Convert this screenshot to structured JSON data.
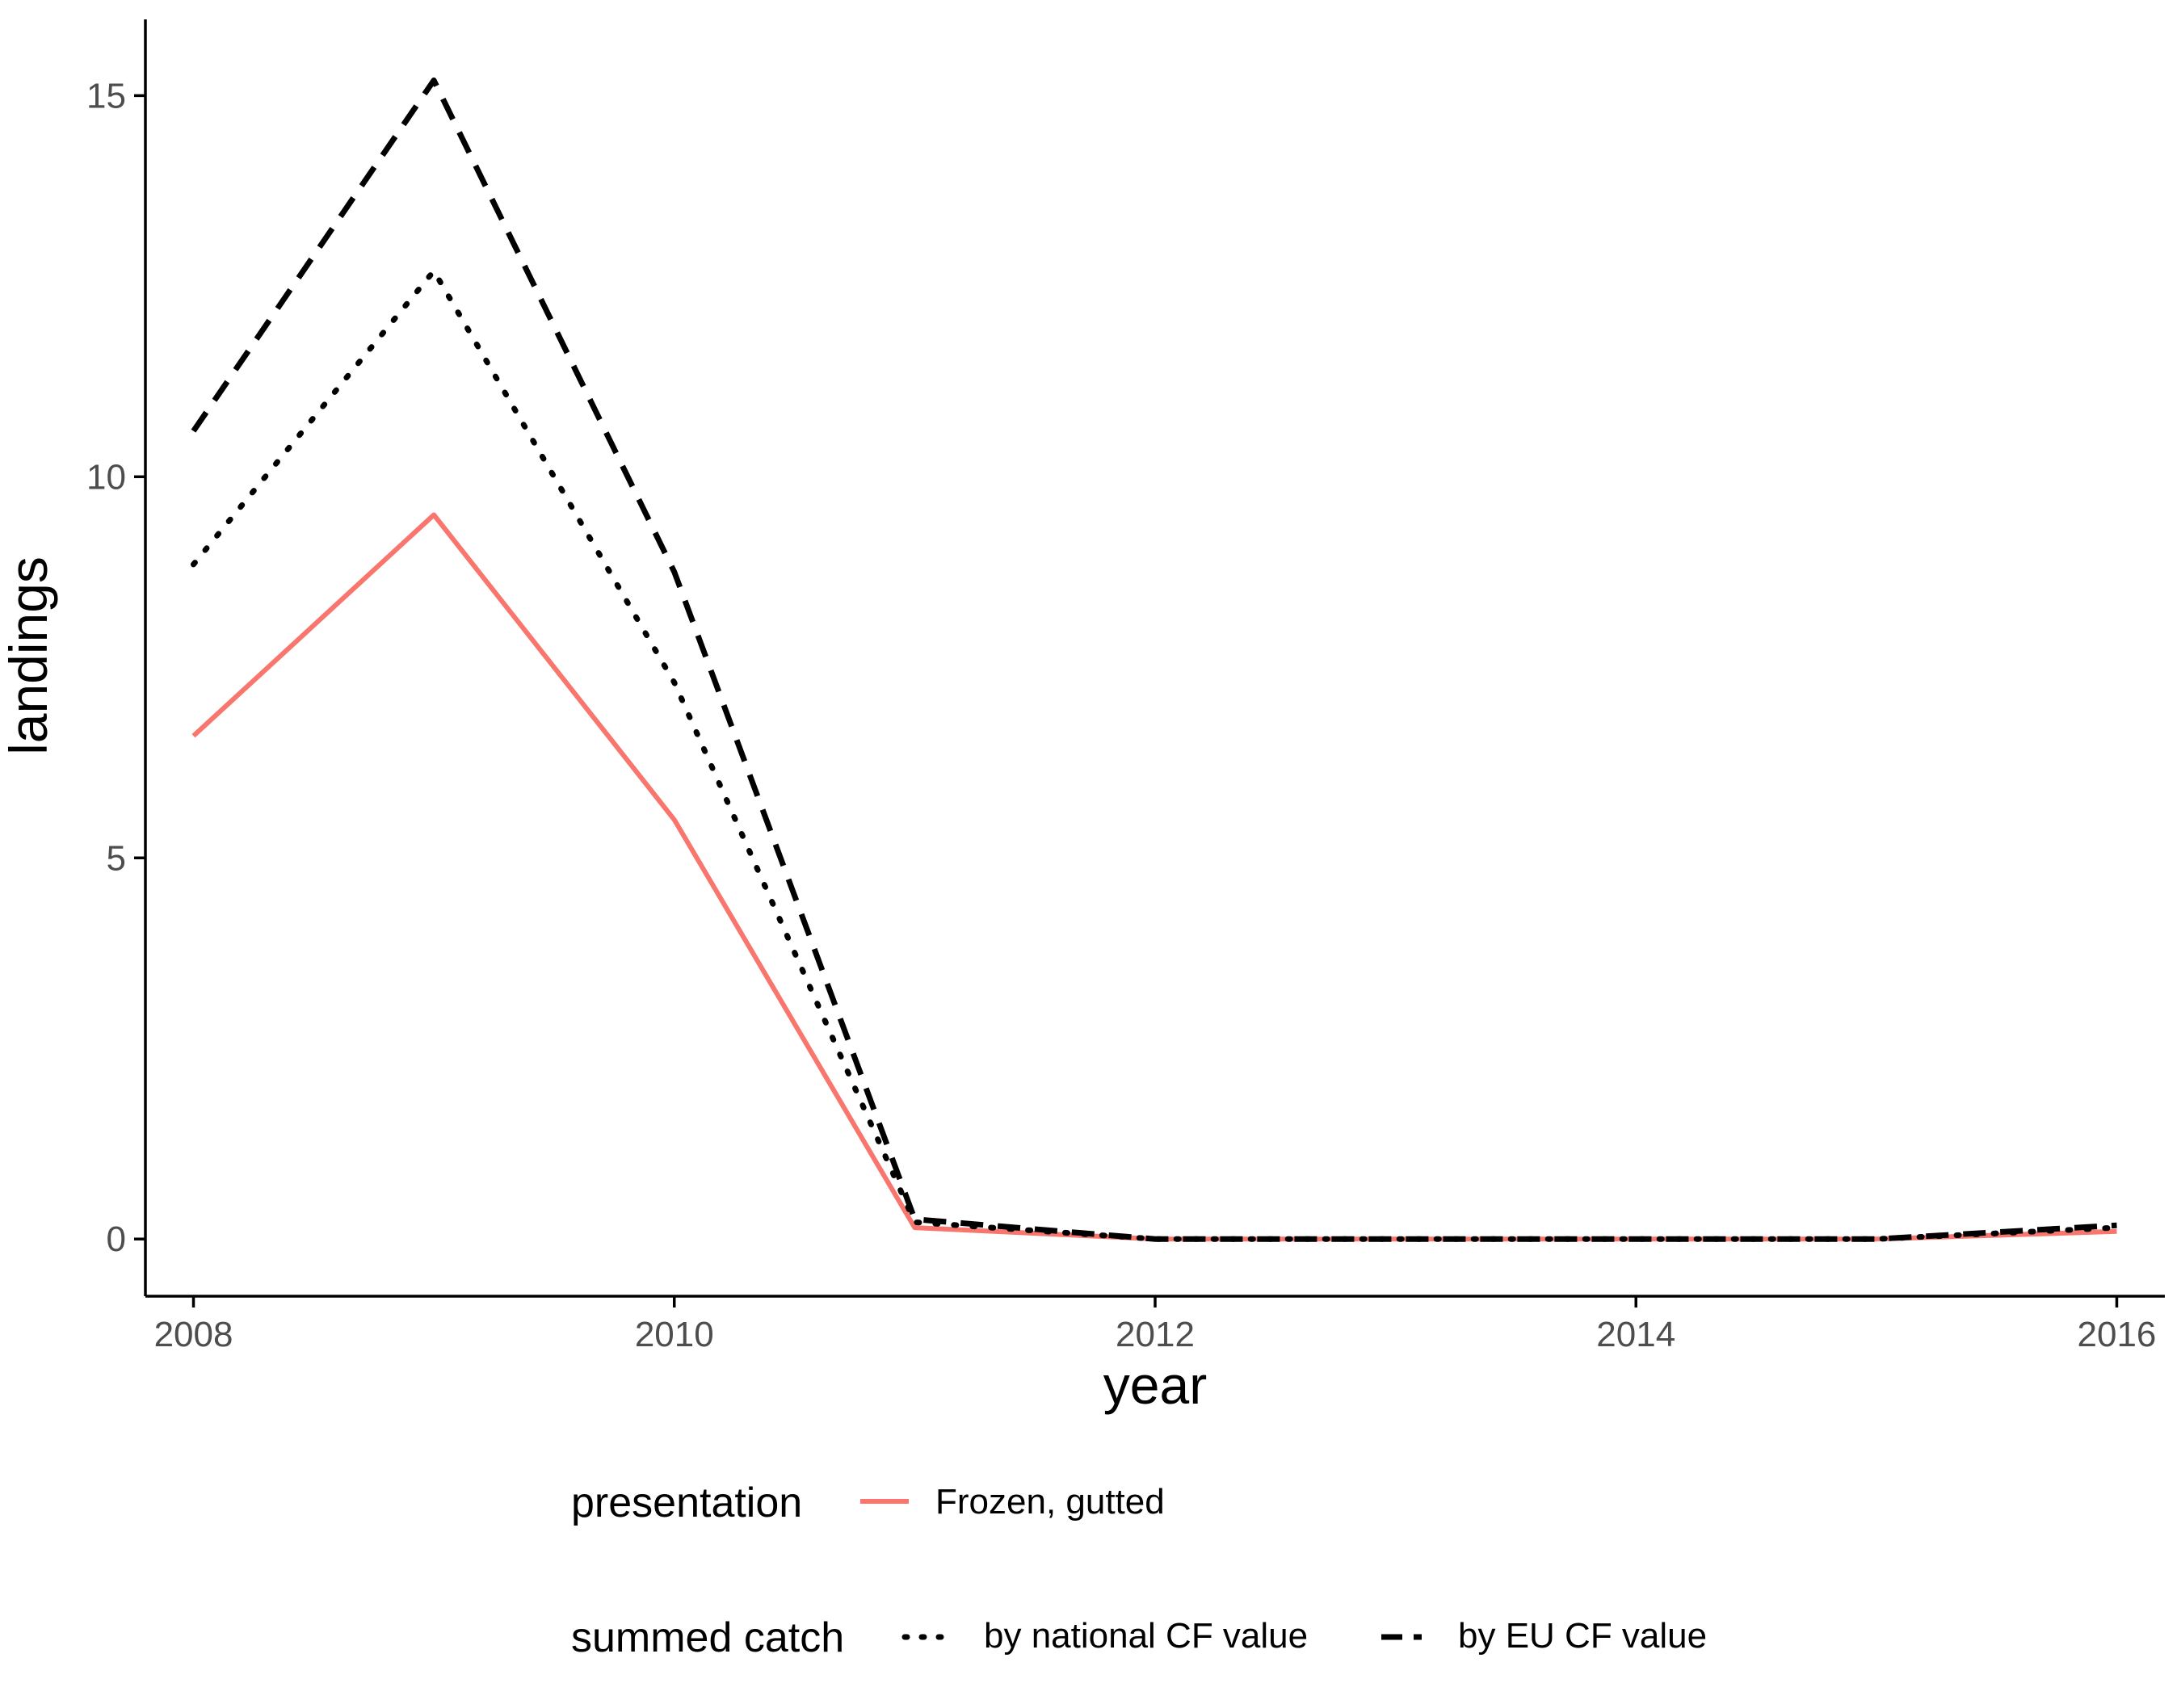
{
  "chart_data": {
    "type": "line",
    "title": "",
    "xlabel": "year",
    "ylabel": "landings",
    "xlim": [
      2007.8,
      2016.2
    ],
    "ylim": [
      -0.75,
      16
    ],
    "x_ticks": [
      2008,
      2010,
      2012,
      2014,
      2016
    ],
    "x_tick_labels": [
      "2008",
      "2010",
      "2012",
      "2014",
      "2016"
    ],
    "y_ticks": [
      0,
      5,
      10,
      15
    ],
    "y_tick_labels": [
      "0",
      "5",
      "10",
      "15"
    ],
    "grid": false,
    "legend_position": "bottom",
    "x": [
      2008,
      2009,
      2010,
      2011,
      2012,
      2013,
      2014,
      2015,
      2016
    ],
    "series": [
      {
        "name": "Frozen, gutted",
        "legend_group": "presentation",
        "color": "#F8766D",
        "linetype": "solid",
        "values": [
          6.6,
          9.5,
          5.5,
          0.15,
          0.0,
          0.0,
          0.0,
          0.0,
          0.1
        ]
      },
      {
        "name": "by national CF value",
        "legend_group": "summed catch",
        "color": "#000000",
        "linetype": "dotted",
        "values": [
          8.85,
          12.7,
          7.3,
          0.22,
          0.0,
          0.0,
          0.0,
          0.0,
          0.15
        ]
      },
      {
        "name": "by EU CF value",
        "legend_group": "summed catch",
        "color": "#000000",
        "linetype": "dashed",
        "values": [
          10.6,
          15.2,
          8.75,
          0.26,
          0.0,
          0.0,
          0.0,
          0.0,
          0.18
        ]
      }
    ],
    "legends": [
      {
        "title": "presentation",
        "entries": [
          "Frozen, gutted"
        ]
      },
      {
        "title": "summed catch",
        "entries": [
          "by national CF value",
          "by EU CF value"
        ]
      }
    ]
  }
}
